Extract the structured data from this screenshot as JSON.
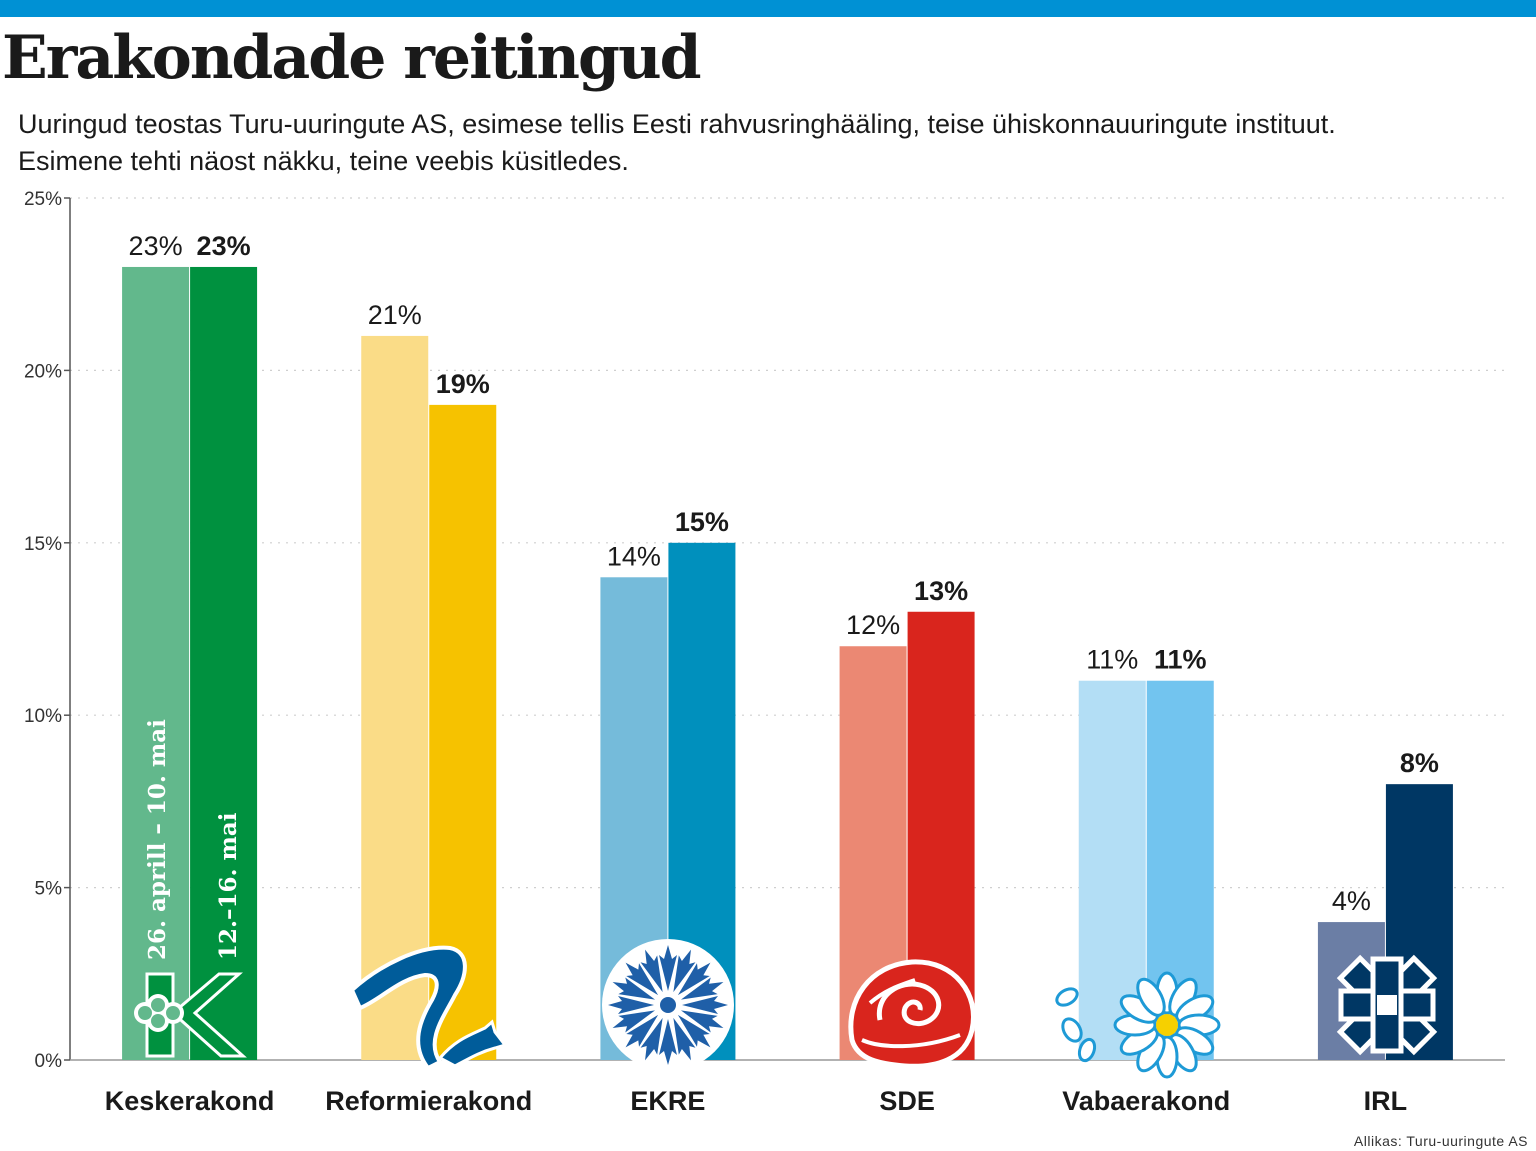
{
  "title": "Erakondade reitingud",
  "subtitle_line1": "Uuringud teostas Turu-uuringute AS, esimese tellis Eesti rahvusringhääling, teise ühiskonnauuringute instituut.",
  "subtitle_line2": "Esimene tehti  näost näkku, teine veebis küsitledes.",
  "source": "Allikas: Turu-uuringute AS",
  "periods": [
    "26. aprill – 10. mai",
    "12.–16. mai"
  ],
  "colors": {
    "top_band": "#0091d4",
    "Keskerakond": [
      "#62b88c",
      "#00913f"
    ],
    "Reformierakond": [
      "#fadc87",
      "#f6c200"
    ],
    "EKRE": [
      "#75bbda",
      "#0090bd"
    ],
    "SDE": [
      "#eb8873",
      "#d9251d"
    ],
    "Vabaerakond": [
      "#b3def5",
      "#72c4ef"
    ],
    "IRL": [
      "#6b7ea5",
      "#003764"
    ]
  },
  "logos": [
    "keskerakond-logo",
    "reformierakond-squirrel-logo",
    "ekre-cornflower-logo",
    "sde-rose-logo",
    "vabaerakond-flower-logo",
    "irl-knot-logo"
  ],
  "chart_data": {
    "type": "bar",
    "categories": [
      "Keskerakond",
      "Reformierakond",
      "EKRE",
      "SDE",
      "Vabaerakond",
      "IRL"
    ],
    "series": [
      {
        "name": "26. aprill – 10. mai",
        "values": [
          23,
          21,
          14,
          12,
          11,
          4
        ]
      },
      {
        "name": "12.–16. mai",
        "values": [
          23,
          19,
          15,
          13,
          11,
          8
        ]
      }
    ],
    "value_labels": [
      [
        "23%",
        "21%",
        "14%",
        "12%",
        "11%",
        "4%"
      ],
      [
        "23%",
        "19%",
        "15%",
        "13%",
        "11%",
        "8%"
      ]
    ],
    "ylim": [
      0,
      25
    ],
    "yticks": [
      0,
      5,
      10,
      15,
      20,
      25
    ],
    "ytick_labels": [
      "0%",
      "5%",
      "10%",
      "15%",
      "20%",
      "25%"
    ],
    "grid": "dotted-horizontal",
    "legend": "none"
  }
}
